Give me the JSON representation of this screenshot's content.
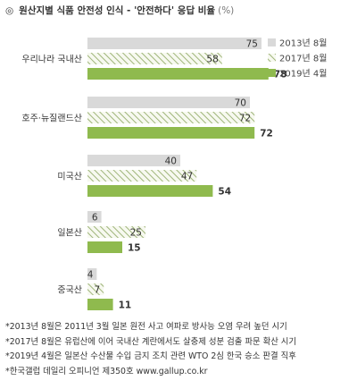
{
  "title": {
    "marker": "◎",
    "text": "원산지별 식품 안전성 인식 - '안전하다' 응답 비율",
    "unit": "(%)"
  },
  "colors": {
    "s2013": "#d9d9d9",
    "s2017_stripe": "#9fb57a",
    "s2017_bg": "#f7f9f0",
    "s2019": "#8fba4e"
  },
  "chart_data": {
    "type": "bar",
    "orientation": "horizontal",
    "categories": [
      "우리나라 국내산",
      "호주·뉴질랜드산",
      "미국산",
      "일본산",
      "중국산"
    ],
    "series": [
      {
        "name": "2013년 8월",
        "values": [
          75,
          70,
          40,
          6,
          4
        ],
        "style": "solid-gray"
      },
      {
        "name": "2017년 8월",
        "values": [
          58,
          72,
          47,
          25,
          7
        ],
        "style": "hatched-green"
      },
      {
        "name": "2019년 4월",
        "values": [
          78,
          72,
          54,
          15,
          11
        ],
        "style": "solid-green"
      }
    ],
    "xlim": [
      0,
      100
    ],
    "grid": false,
    "legend": "top-right"
  },
  "notes": [
    "*2013년 8월은 2011년 3월 일본 원전 사고 여파로 방사능 오염 우려 높던 시기",
    "*2017년 8월은 유럽산에 이어 국내산 계란에서도 살충제 성분 검출 파문 확산 시기",
    "*2019년 4월은 일본산 수산물 수입 금지 조치 관련 WTO 2심 한국 승소 판결 직후",
    "*한국갤럽 데일리 오피니언 제350호 www.gallup.co.kr"
  ]
}
